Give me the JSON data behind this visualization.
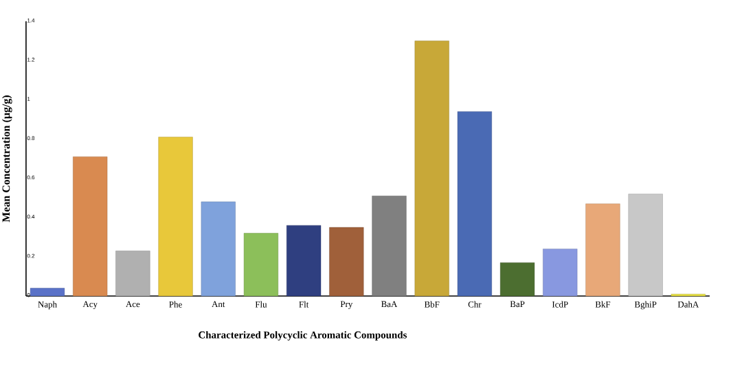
{
  "chart_data": {
    "type": "bar",
    "xlabel": "Characterized Polycyclic Aromatic Compounds",
    "ylabel": "Mean Concentration (µg/g)",
    "categories": [
      "Naph",
      "Acy",
      "Ace",
      "Phe",
      "Ant",
      "Flu",
      "Flt",
      "Pry",
      "BaA",
      "BbF",
      "Chr",
      "BaP",
      "IcdP",
      "BkF",
      "BghiP",
      "DahA"
    ],
    "values": [
      0.04,
      0.71,
      0.23,
      0.81,
      0.48,
      0.32,
      0.36,
      0.35,
      0.51,
      1.3,
      0.94,
      0.17,
      0.24,
      0.47,
      0.52,
      0.01
    ],
    "colors": [
      "#5a72c8",
      "#d98a50",
      "#b0b0b0",
      "#e8c83a",
      "#7fa2dc",
      "#8cbf5a",
      "#2f3f80",
      "#a0603a",
      "#808080",
      "#c8a838",
      "#4a6ab4",
      "#4c6e30",
      "#8898e0",
      "#e8a878",
      "#c8c8c8",
      "#e8e040"
    ],
    "ylim": [
      0,
      1.4
    ],
    "yticks": [
      {
        "value": 0,
        "label": "0"
      },
      {
        "value": 0.2,
        "label": "0.2"
      },
      {
        "value": 0.4,
        "label": "0.4"
      },
      {
        "value": 0.6,
        "label": "0.6"
      },
      {
        "value": 0.8,
        "label": "0.8"
      },
      {
        "value": 1,
        "label": "1"
      },
      {
        "value": 1.2,
        "label": "1.2"
      },
      {
        "value": 1.4,
        "label": "1.4"
      }
    ],
    "grid": false
  }
}
